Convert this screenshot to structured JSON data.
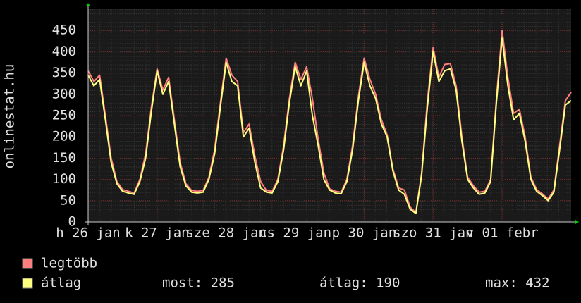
{
  "chart_data": {
    "type": "line",
    "ylabel": "onlinestat.hu",
    "x": [
      0,
      2,
      4,
      6,
      8,
      10,
      12,
      14,
      16,
      18,
      20,
      22,
      24,
      26,
      28,
      30,
      32,
      34,
      36,
      38,
      40,
      42,
      44,
      46,
      48,
      50,
      52,
      54,
      56,
      58,
      60,
      62,
      64,
      66,
      68,
      70,
      72,
      74,
      76,
      78,
      80,
      82,
      84,
      86,
      88,
      90,
      92,
      94,
      96,
      98,
      100,
      102,
      104,
      106,
      108,
      110,
      112,
      114,
      116,
      118,
      120,
      122,
      124,
      126,
      128,
      130,
      132,
      134,
      136,
      138,
      140,
      142,
      144,
      146,
      148,
      150,
      152,
      154,
      156,
      158,
      160,
      162,
      164,
      166,
      168
    ],
    "series": [
      {
        "name": "legtöbb",
        "color": "#ff7f7f",
        "values": [
          355,
          330,
          345,
          250,
          150,
          95,
          76,
          72,
          68,
          100,
          160,
          270,
          360,
          310,
          340,
          240,
          140,
          90,
          74,
          72,
          74,
          105,
          170,
          280,
          385,
          345,
          330,
          210,
          230,
          155,
          95,
          74,
          72,
          100,
          180,
          290,
          375,
          335,
          365,
          290,
          195,
          115,
          78,
          72,
          70,
          100,
          180,
          295,
          385,
          335,
          300,
          240,
          205,
          125,
          80,
          75,
          35,
          22,
          115,
          285,
          410,
          340,
          370,
          372,
          320,
          200,
          105,
          85,
          70,
          72,
          100,
          290,
          450,
          340,
          255,
          265,
          200,
          105,
          76,
          66,
          54,
          75,
          180,
          285,
          305
        ]
      },
      {
        "name": "átlag",
        "color": "#ffff7f",
        "values": [
          345,
          320,
          335,
          240,
          140,
          90,
          72,
          68,
          65,
          95,
          150,
          260,
          355,
          300,
          330,
          230,
          130,
          85,
          70,
          68,
          70,
          100,
          160,
          270,
          375,
          330,
          320,
          200,
          220,
          140,
          80,
          70,
          68,
          95,
          170,
          280,
          365,
          320,
          355,
          250,
          180,
          100,
          75,
          68,
          66,
          95,
          170,
          285,
          375,
          320,
          290,
          230,
          200,
          120,
          75,
          65,
          30,
          20,
          110,
          270,
          400,
          330,
          355,
          360,
          310,
          190,
          100,
          80,
          65,
          68,
          95,
          280,
          432,
          320,
          240,
          255,
          190,
          100,
          72,
          62,
          50,
          70,
          170,
          275,
          285
        ]
      }
    ],
    "stats": [
      "most: 285",
      "átlag: 190",
      "max: 432"
    ],
    "xlim": [
      0,
      168
    ],
    "xticks": [
      {
        "value": 0,
        "label": "h 26 jan"
      },
      {
        "value": 24,
        "label": "k 27 jan"
      },
      {
        "value": 48,
        "label": "sze 28 jan"
      },
      {
        "value": 72,
        "label": "cs 29 jan"
      },
      {
        "value": 96,
        "label": "p 30 jan"
      },
      {
        "value": 120,
        "label": "szo 31 jan"
      },
      {
        "value": 144,
        "label": "v 01 febr"
      }
    ],
    "ylim": [
      0,
      500
    ],
    "yticks": [
      0,
      50,
      100,
      150,
      200,
      250,
      300,
      350,
      400,
      450
    ],
    "grid": true
  }
}
